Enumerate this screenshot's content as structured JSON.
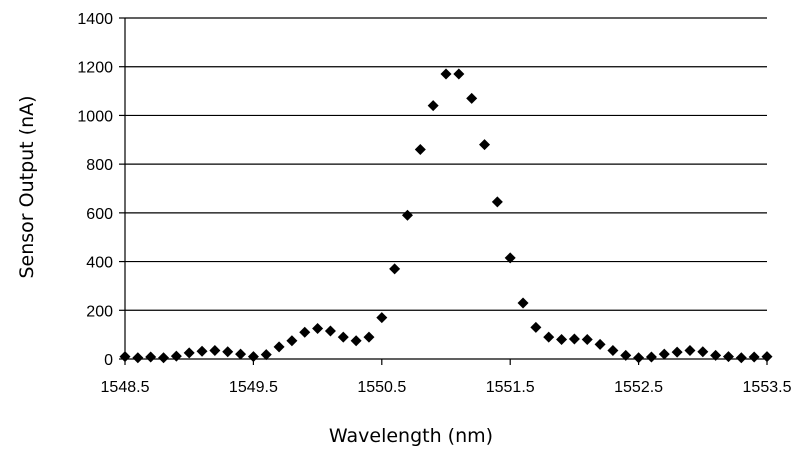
{
  "chart_data": {
    "type": "scatter",
    "xlabel": "Wavelength (nm)",
    "ylabel": "Sensor Output (nA)",
    "xlim": [
      1548.5,
      1553.5
    ],
    "ylim": [
      0,
      1400
    ],
    "xticks": [
      1548.5,
      1549.5,
      1550.5,
      1551.5,
      1552.5,
      1553.5
    ],
    "xtick_labels": [
      "1548.5",
      "1549.5",
      "1550.5",
      "1551.5",
      "1552.5",
      "1553.5"
    ],
    "yticks": [
      0,
      200,
      400,
      600,
      800,
      1000,
      1200,
      1400
    ],
    "ytick_labels": [
      "0",
      "200",
      "400",
      "600",
      "800",
      "1000",
      "1200",
      "1400"
    ],
    "grid": "horizontal",
    "marker": "diamond",
    "marker_color": "#000000",
    "series": [
      {
        "x": [
          1548.5,
          1548.6,
          1548.7,
          1548.8,
          1548.9,
          1549.0,
          1549.1,
          1549.2,
          1549.3,
          1549.4,
          1549.5,
          1549.6,
          1549.7,
          1549.8,
          1549.9,
          1550.0,
          1550.1,
          1550.2,
          1550.3,
          1550.4,
          1550.5,
          1550.6,
          1550.7,
          1550.8,
          1550.9,
          1551.0,
          1551.1,
          1551.2,
          1551.3,
          1551.4,
          1551.5,
          1551.6,
          1551.7,
          1551.8,
          1551.9,
          1552.0,
          1552.1,
          1552.2,
          1552.3,
          1552.4,
          1552.5,
          1552.6,
          1552.7,
          1552.8,
          1552.9,
          1553.0,
          1553.1,
          1553.2,
          1553.3,
          1553.4,
          1553.5
        ],
        "y": [
          10,
          5,
          8,
          5,
          12,
          25,
          32,
          35,
          30,
          20,
          10,
          18,
          50,
          75,
          110,
          125,
          115,
          90,
          75,
          90,
          170,
          370,
          590,
          860,
          1040,
          1170,
          1170,
          1070,
          880,
          645,
          415,
          230,
          130,
          90,
          80,
          82,
          80,
          60,
          35,
          15,
          5,
          8,
          20,
          28,
          35,
          30,
          15,
          10,
          5,
          8,
          10
        ]
      }
    ]
  }
}
